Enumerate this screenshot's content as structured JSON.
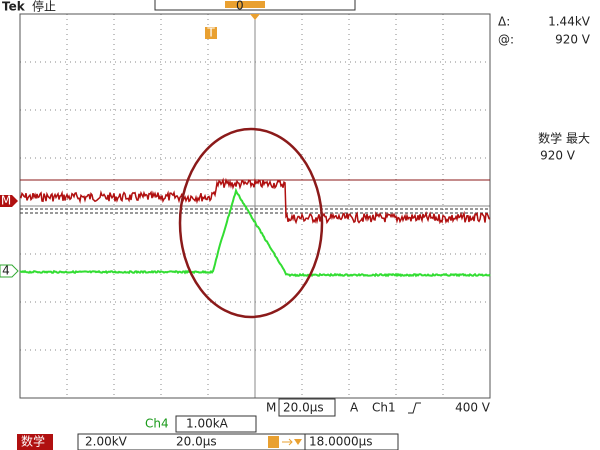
{
  "header": {
    "brand": "Tek",
    "status": "停止",
    "position": "0"
  },
  "readouts": {
    "delta_label": "Δ:",
    "delta_value": "1.44kV",
    "at_label": "@:",
    "at_value": "920 V",
    "math_label": "数学 最大",
    "math_value": "920 V"
  },
  "markers": {
    "math": "M",
    "ch4": "4",
    "trigger": "T"
  },
  "status_bar": {
    "timebase_label": "M",
    "timebase": "20.0μs",
    "trigger_mode": "A",
    "trigger_source": "Ch1",
    "trigger_level": "400 V",
    "ch4_label": "Ch4",
    "ch4_scale": "1.00kA",
    "math_label": "数学",
    "math_scale": "2.00kV",
    "math_timebase": "20.0μs",
    "trigger_delay": "18.0000μs"
  }
}
